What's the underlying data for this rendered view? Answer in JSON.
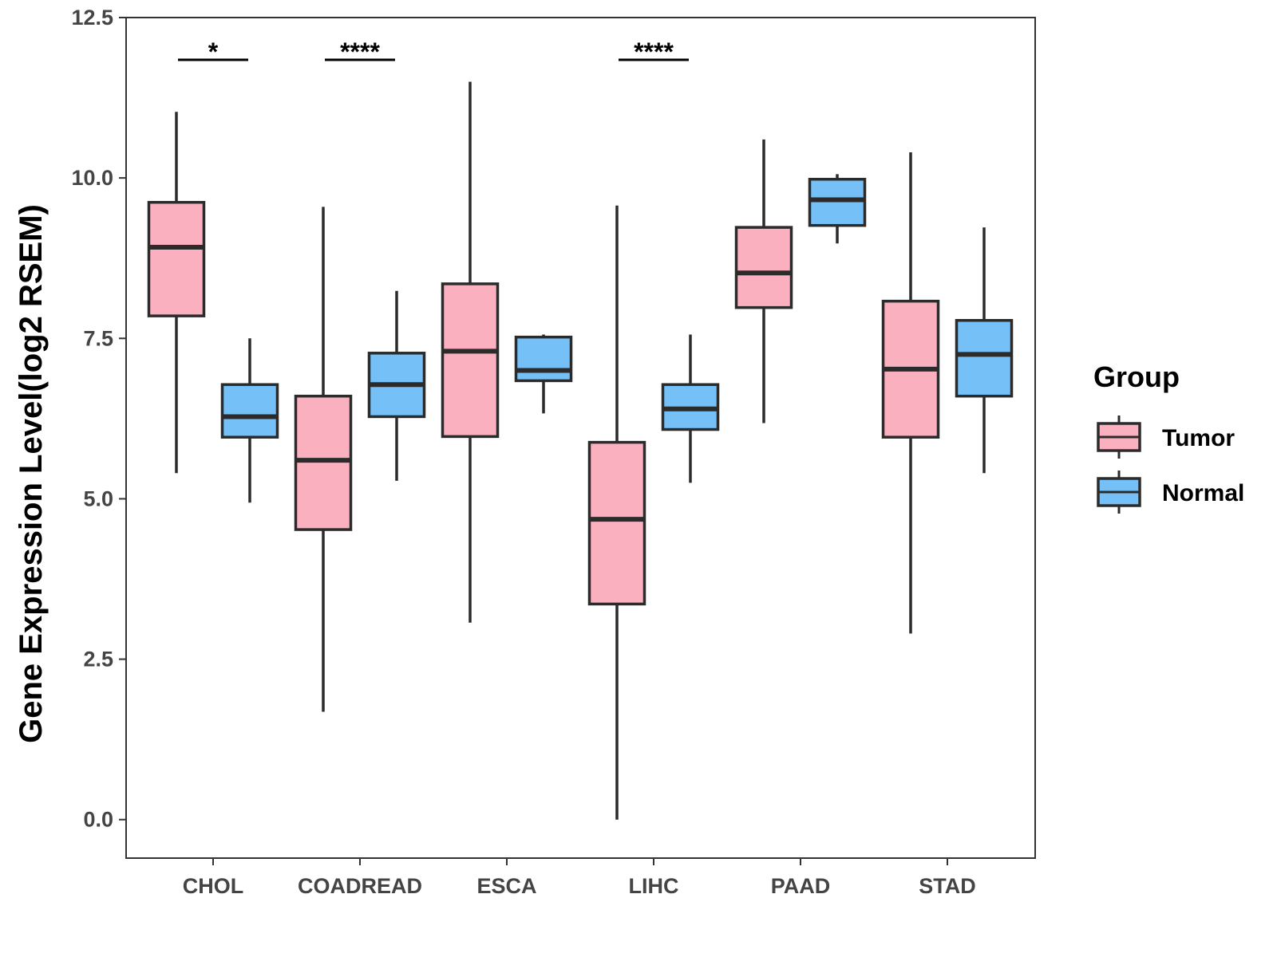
{
  "chart_data": {
    "type": "boxplot",
    "title": "",
    "xlabel": "",
    "ylabel": "Gene Expression Level(log2 RSEM)",
    "ylim": [
      -0.6,
      12.5
    ],
    "yticks": [
      "0.0",
      "2.5",
      "5.0",
      "7.5",
      "10.0",
      "12.5"
    ],
    "categories": [
      "CHOL",
      "COADREAD",
      "ESCA",
      "LIHC",
      "PAAD",
      "STAD"
    ],
    "series": [
      {
        "name": "Tumor",
        "color": "#FBB0C0",
        "boxes": [
          {
            "category": "CHOL",
            "min": 5.4,
            "q1": 7.85,
            "median": 8.92,
            "q3": 9.62,
            "max": 11.03
          },
          {
            "category": "COADREAD",
            "min": 1.68,
            "q1": 4.52,
            "median": 5.6,
            "q3": 6.6,
            "max": 9.55
          },
          {
            "category": "ESCA",
            "min": 3.07,
            "q1": 5.97,
            "median": 7.3,
            "q3": 8.35,
            "max": 11.5
          },
          {
            "category": "LIHC",
            "min": 0.0,
            "q1": 3.36,
            "median": 4.68,
            "q3": 5.88,
            "max": 9.57
          },
          {
            "category": "PAAD",
            "min": 6.18,
            "q1": 7.98,
            "median": 8.52,
            "q3": 9.23,
            "max": 10.6
          },
          {
            "category": "STAD",
            "min": 2.9,
            "q1": 5.96,
            "median": 7.02,
            "q3": 8.08,
            "max": 10.4
          }
        ]
      },
      {
        "name": "Normal",
        "color": "#75C1F7",
        "boxes": [
          {
            "category": "CHOL",
            "min": 4.94,
            "q1": 5.96,
            "median": 6.28,
            "q3": 6.78,
            "max": 7.5
          },
          {
            "category": "COADREAD",
            "min": 5.28,
            "q1": 6.28,
            "median": 6.78,
            "q3": 7.27,
            "max": 8.24
          },
          {
            "category": "ESCA",
            "min": 6.33,
            "q1": 6.84,
            "median": 7.0,
            "q3": 7.52,
            "max": 7.56
          },
          {
            "category": "LIHC",
            "min": 5.25,
            "q1": 6.08,
            "median": 6.4,
            "q3": 6.78,
            "max": 7.56
          },
          {
            "category": "PAAD",
            "min": 8.98,
            "q1": 9.26,
            "median": 9.66,
            "q3": 9.98,
            "max": 10.06
          },
          {
            "category": "STAD",
            "min": 5.4,
            "q1": 6.6,
            "median": 7.25,
            "q3": 7.78,
            "max": 9.23
          }
        ]
      }
    ],
    "significance": [
      {
        "category": "CHOL",
        "label": "*"
      },
      {
        "category": "COADREAD",
        "label": "****"
      },
      {
        "category": "LIHC",
        "label": "****"
      }
    ],
    "legend": {
      "title": "Group",
      "position": "right",
      "entries": [
        "Tumor",
        "Normal"
      ]
    }
  }
}
